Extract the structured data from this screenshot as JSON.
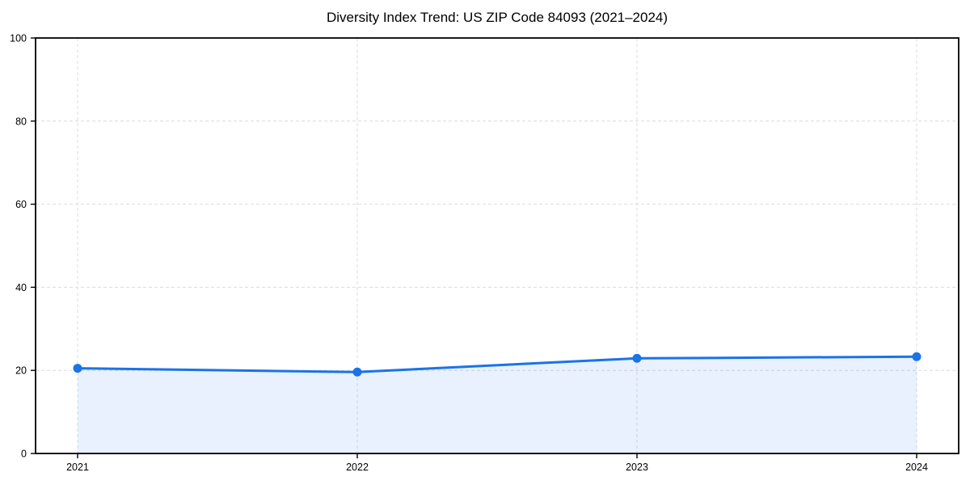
{
  "chart_data": {
    "type": "area",
    "title": "Diversity Index Trend: US ZIP Code 84093 (2021–2024)",
    "x": [
      2021,
      2022,
      2023,
      2024
    ],
    "series": [
      {
        "name": "Diversity Index",
        "values": [
          20.5,
          19.6,
          22.9,
          23.3
        ]
      }
    ],
    "xlabel": "",
    "ylabel": "",
    "ylim": [
      0,
      100
    ],
    "yticks": [
      0,
      20,
      40,
      60,
      80,
      100
    ],
    "grid": true,
    "grid_style": "dashed",
    "legend_position": "none",
    "line_color": "#1a73e8",
    "marker_color": "#1a73e8",
    "fill_color": "rgba(26,115,232,0.10)",
    "grid_color": "#dcdcdc",
    "axis_color": "#000000",
    "text_color": "#000000"
  }
}
